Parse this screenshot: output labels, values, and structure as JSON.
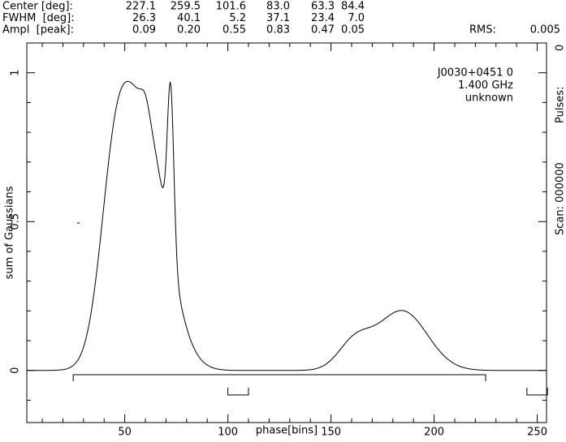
{
  "chart_data": {
    "type": "gaussians",
    "params": [
      {
        "name": "Center [deg]:",
        "values": [
          227.1,
          259.5,
          101.6,
          83.0,
          63.3,
          84.4
        ],
        "value_labels": [
          "227.1",
          "259.5",
          "101.6",
          "83.0",
          "63.3",
          "84.4"
        ]
      },
      {
        "name": "FWHM  [deg]:",
        "values": [
          26.3,
          40.1,
          5.2,
          37.1,
          23.4,
          7.0
        ],
        "value_labels": [
          "26.3",
          "40.1",
          "5.2",
          "37.1",
          "23.4",
          "7.0"
        ]
      },
      {
        "name": "Ampl  [peak]:",
        "values": [
          0.09,
          0.2,
          0.55,
          0.83,
          0.47,
          0.05
        ],
        "value_labels": [
          "0.09",
          "0.20",
          "0.55",
          "0.83",
          "0.47",
          "0.05"
        ]
      }
    ],
    "rms_label": "RMS:",
    "rms": 0.005,
    "annotations": [
      "J0030+0451 0",
      "1.400 GHz",
      "unknown"
    ],
    "scan": "Scan: 000000",
    "pulses_label": "Pulses:",
    "pulses": 0,
    "xlabel": "phase[bins]",
    "ylabel": "sum of Gaussians",
    "xlim": [
      2.5,
      254.5
    ],
    "ylim": [
      -0.175,
      1.1
    ],
    "xticks": [
      50,
      100,
      150,
      200,
      250
    ],
    "yticks": [
      0,
      0.5,
      1
    ],
    "xticks_minor": [
      10,
      20,
      30,
      40,
      60,
      70,
      80,
      90,
      110,
      120,
      130,
      140,
      160,
      170,
      180,
      190,
      210,
      220,
      230,
      240
    ],
    "yticks_minor": [
      -0.1,
      0.1,
      0.2,
      0.3,
      0.4,
      0.6,
      0.7,
      0.8,
      0.9
    ],
    "ranges": [
      [
        25,
        225
      ],
      [
        100,
        110
      ],
      [
        245,
        255
      ]
    ],
    "color": "#000000"
  }
}
